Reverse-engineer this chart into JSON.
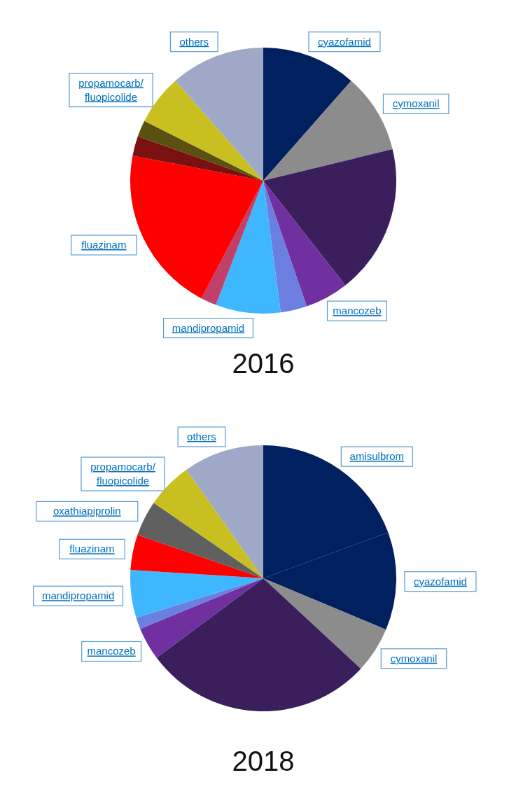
{
  "chart_data": [
    {
      "type": "pie",
      "title": "2016",
      "legend": false,
      "categories": [
        "cyazofamid",
        "cymoxanil",
        null,
        "mancozeb",
        null,
        "mandipropamid",
        null,
        "fluazinam",
        null,
        null,
        "propamocarb/fluopicolide",
        "others"
      ],
      "values": [
        11.5,
        9.7,
        18.2,
        5.3,
        3.2,
        7.9,
        1.9,
        20.3,
        2.4,
        2,
        6.1,
        11.5
      ],
      "colors": [
        "#002060",
        "#8c8c8c",
        "#3a1f5c",
        "#7030a0",
        "#6a7fe0",
        "#3fb7ff",
        "#c0406a",
        "#ff0000",
        "#7a1010",
        "#5a5010",
        "#c8c020",
        "#a0a8c8"
      ]
    },
    {
      "type": "pie",
      "title": "2018",
      "legend": false,
      "categories": [
        "amisulbrom",
        "cyazofamid",
        "cymoxanil",
        null,
        "mancozeb",
        null,
        "mandipropamid",
        "fluazinam",
        "oxathiapiprolin",
        "propamocarb/fluopicolide",
        "others"
      ],
      "values": [
        19.4,
        11.9,
        5.6,
        27.9,
        4,
        1.4,
        5.8,
        4.3,
        4.3,
        5.6,
        9.8
      ],
      "colors": [
        "#002060",
        "#002060",
        "#8c8c8c",
        "#3a1f5c",
        "#7030a0",
        "#6a7fe0",
        "#3fb7ff",
        "#ff0000",
        "#606060",
        "#c8c020",
        "#a0a8c8"
      ]
    }
  ]
}
